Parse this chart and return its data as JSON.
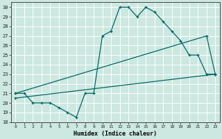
{
  "xlabel": "Humidex (Indice chaleur)",
  "xlim": [
    -0.5,
    23.5
  ],
  "ylim": [
    18,
    30.5
  ],
  "xticks": [
    0,
    1,
    2,
    3,
    4,
    5,
    6,
    7,
    8,
    9,
    10,
    11,
    12,
    13,
    14,
    15,
    16,
    17,
    18,
    19,
    20,
    21,
    22,
    23
  ],
  "yticks": [
    18,
    19,
    20,
    21,
    22,
    23,
    24,
    25,
    26,
    27,
    28,
    29,
    30
  ],
  "bg_color": "#cce8e0",
  "line_color": "#006666",
  "grid_color": "#ffffff",
  "line1_x": [
    0,
    1,
    2,
    3,
    4,
    5,
    6,
    7,
    8,
    9,
    10,
    11,
    12,
    13,
    14,
    15,
    16,
    17,
    18,
    19,
    20,
    21,
    22,
    23
  ],
  "line1_y": [
    21,
    21,
    20,
    20,
    20,
    19.5,
    19,
    18.5,
    21,
    21,
    27,
    27.5,
    30,
    30,
    29,
    30,
    29.5,
    28.5,
    27.5,
    26.5,
    25,
    25,
    23,
    23
  ],
  "line2_x": [
    0,
    22,
    23
  ],
  "line2_y": [
    21,
    27,
    23
  ],
  "line3_x": [
    0,
    23
  ],
  "line3_y": [
    20.5,
    23
  ]
}
